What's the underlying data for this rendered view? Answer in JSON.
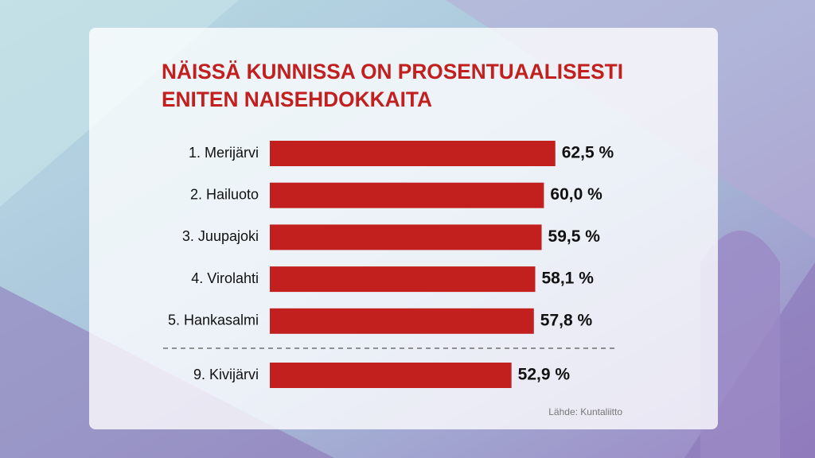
{
  "chart_data": {
    "type": "bar",
    "orientation": "horizontal",
    "title": [
      "NÄISSÄ KUNNISSA ON PROSENTUAALISESTI",
      "ENITEN NAISEHDOKKAITA"
    ],
    "categories": [
      "1. Merijärvi",
      "2. Hailuoto",
      "3. Juupajoki",
      "4. Virolahti",
      "5. Hankasalmi",
      "9. Kivijärvi"
    ],
    "values": [
      62.5,
      60.0,
      59.5,
      58.1,
      57.8,
      52.9
    ],
    "value_labels": [
      "62,5 %",
      "60,0 %",
      "59,5 %",
      "58,1 %",
      "57,8 %",
      "52,9 %"
    ],
    "color": "#c1201f",
    "source": "Lähde: Kuntaliitto"
  }
}
